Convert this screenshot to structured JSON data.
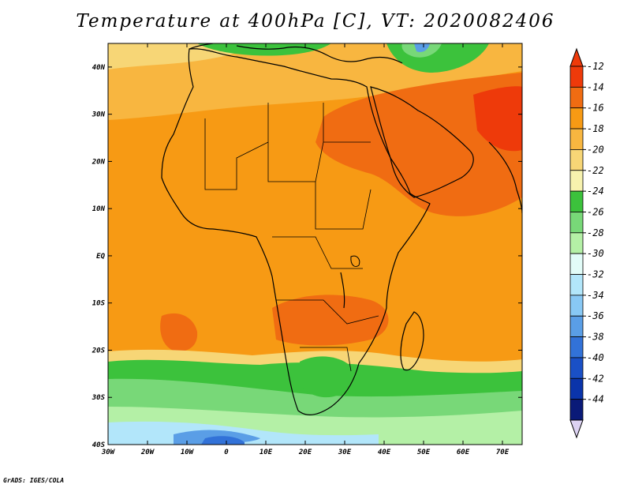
{
  "title": "Temperature at 400hPa [C], VT: 2020082406",
  "credit": "GrADS: IGES/COLA",
  "map": {
    "lon_range": [
      -30,
      75
    ],
    "lat_range": [
      -40,
      45
    ],
    "x_ticks": [
      "30W",
      "20W",
      "10W",
      "0",
      "10E",
      "20E",
      "30E",
      "40E",
      "50E",
      "60E",
      "70E"
    ],
    "y_ticks": [
      "40S",
      "30S",
      "20S",
      "10S",
      "EQ",
      "10N",
      "20N",
      "30N",
      "40N"
    ]
  },
  "colorbar": {
    "labels": [
      "-12",
      "-14",
      "-16",
      "-18",
      "-20",
      "-22",
      "-24",
      "-26",
      "-28",
      "-30",
      "-32",
      "-34",
      "-36",
      "-38",
      "-40",
      "-42",
      "-44"
    ],
    "colors": [
      "#ee3a0a",
      "#f06c12",
      "#f79a14",
      "#f8b640",
      "#f7d676",
      "#f7f2ae",
      "#3cc23c",
      "#78d878",
      "#b4f0a6",
      "#e2fcf8",
      "#b2e6fa",
      "#88c8f4",
      "#5a9ee6",
      "#3272d8",
      "#1a50c6",
      "#0a34aa",
      "#0a1a78"
    ],
    "top_color": "#ee3a0a",
    "bottom_color": "#dcd2f2"
  }
}
